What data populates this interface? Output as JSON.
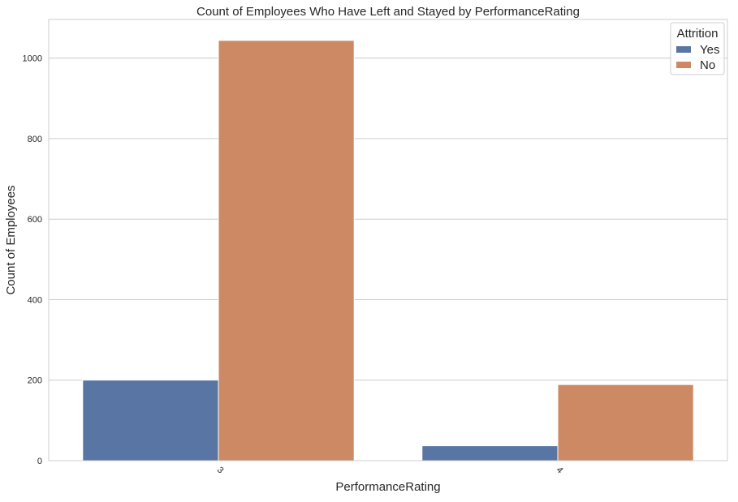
{
  "chart_data": {
    "type": "bar",
    "title": "Count of Employees Who Have Left and Stayed by PerformanceRating",
    "xlabel": "PerformanceRating",
    "ylabel": "Count of Employees",
    "categories": [
      "3",
      "4"
    ],
    "series": [
      {
        "name": "Yes",
        "color": "#5875a4",
        "values": [
          200,
          37
        ]
      },
      {
        "name": "No",
        "color": "#cc8963",
        "values": [
          1044,
          189
        ]
      }
    ],
    "ylim": [
      0,
      1096
    ],
    "yticks": [
      0,
      200,
      400,
      600,
      800,
      1000
    ],
    "grid": "horizontal",
    "legend": {
      "title": "Attrition",
      "placement": "top-right"
    },
    "x_tick_rotation": 45
  }
}
